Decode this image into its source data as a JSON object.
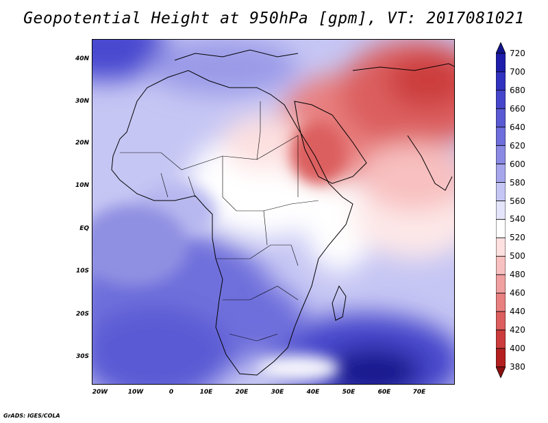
{
  "title": "Geopotential Height at 950hPa [gpm], VT: 2017081021",
  "credit": "GrADS: IGES/COLA",
  "latitude_labels": [
    "40N",
    "30N",
    "20N",
    "10N",
    "EQ",
    "10S",
    "20S",
    "30S"
  ],
  "longitude_labels": [
    "20W",
    "10W",
    "0",
    "10E",
    "20E",
    "30E",
    "40E",
    "50E",
    "60E",
    "70E"
  ],
  "colorbar": {
    "labels": [
      "720",
      "700",
      "680",
      "660",
      "640",
      "620",
      "600",
      "580",
      "560",
      "540",
      "520",
      "500",
      "480",
      "460",
      "440",
      "420",
      "400",
      "380"
    ],
    "colors": [
      "#14148c",
      "#1e1eaa",
      "#3232c0",
      "#4646cc",
      "#5a5ad4",
      "#6e6edc",
      "#8a8ae4",
      "#a6a6ec",
      "#c6c6f4",
      "#e4e4fa",
      "#ffffff",
      "#fde0e0",
      "#f8c0c0",
      "#f0a0a0",
      "#e88080",
      "#dc5e5e",
      "#cc3c3c",
      "#b42020",
      "#8c1010"
    ]
  },
  "map": {
    "extent_lon": [
      -22,
      80
    ],
    "extent_lat": [
      -37,
      45
    ]
  }
}
